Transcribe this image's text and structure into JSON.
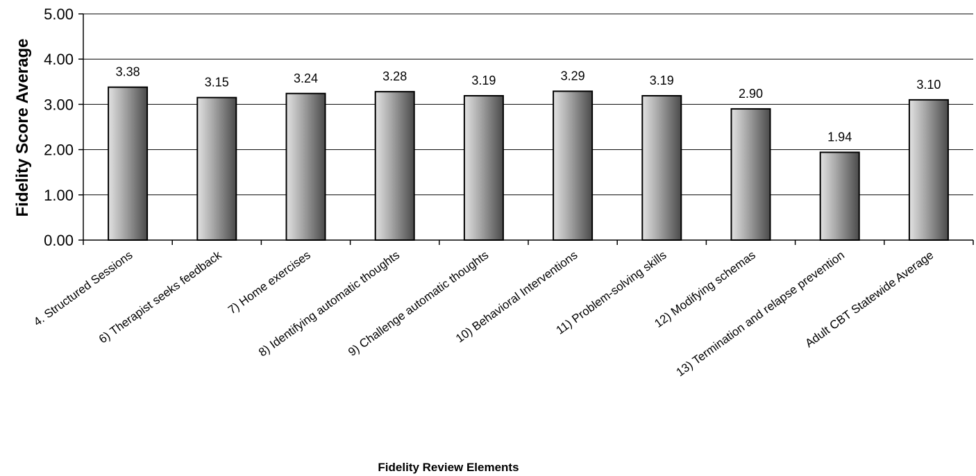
{
  "chart_data": {
    "type": "bar",
    "title": "",
    "xlabel": "Fidelity Review Elements",
    "ylabel": "Fidelity Score Average",
    "ylim": [
      0,
      5
    ],
    "yticks": [
      "0.00",
      "1.00",
      "2.00",
      "3.00",
      "4.00",
      "5.00"
    ],
    "grid": true,
    "categories": [
      "4.  Structured Sessions",
      "6) Therapist seeks feedback",
      "7) Home exercises",
      "8) Identifying automatic thoughts",
      "9) Challenge automatic thoughts",
      "10) Behavioral Interventions",
      "11) Problem-solving skills",
      "12) Modifying schemas",
      "13) Termination and relapse prevention",
      "Adult CBT Statewide Average"
    ],
    "values": [
      3.38,
      3.15,
      3.24,
      3.28,
      3.19,
      3.29,
      3.19,
      2.9,
      1.94,
      3.1
    ],
    "data_labels": [
      "3.38",
      "3.15",
      "3.24",
      "3.28",
      "3.19",
      "3.29",
      "3.19",
      "2.90",
      "1.94",
      "3.10"
    ],
    "colors": {
      "bar_light": "#e2e2e2",
      "bar_mid": "#a8a8a8",
      "bar_dark": "#4a4a4a",
      "outline": "#000000"
    }
  }
}
